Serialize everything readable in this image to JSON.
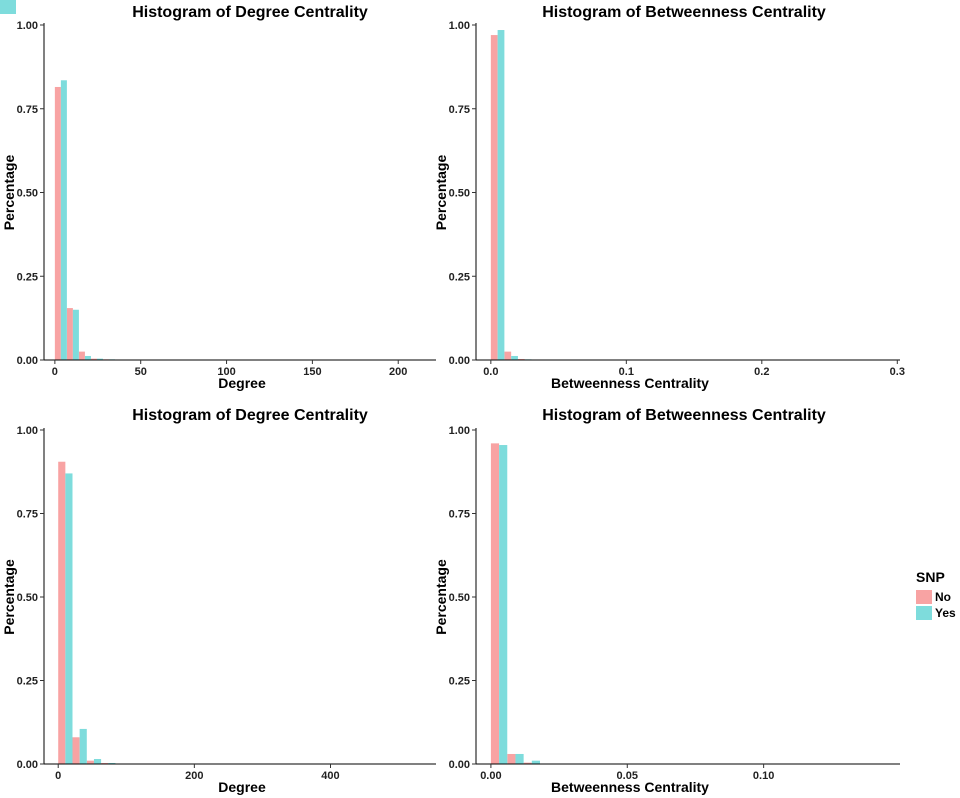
{
  "chart_data": [
    {
      "type": "bar",
      "title": "Histogram of Degree Centrality",
      "xlabel": "Degree",
      "ylabel": "Percentage",
      "xlim": [
        -4,
        222
      ],
      "ylim": [
        0,
        1
      ],
      "bin_width": 7,
      "x_ticks": [
        0,
        50,
        100,
        150,
        200
      ],
      "x_tick_labels": [
        "0",
        "50",
        "100",
        "150",
        "200"
      ],
      "y_ticks": [
        0,
        0.25,
        0.5,
        0.75,
        1
      ],
      "y_tick_labels": [
        "0.00",
        "0.25",
        "0.50",
        "0.75",
        "1.00"
      ],
      "grid": false,
      "bins": [
        0,
        7,
        14,
        21,
        28,
        35
      ],
      "series": [
        {
          "name": "No",
          "color": "#F8A3A3",
          "values": [
            0.815,
            0.155,
            0.025,
            0.004,
            0.002,
            0.001
          ]
        },
        {
          "name": "Yes",
          "color": "#7EDCDC",
          "values": [
            0.835,
            0.15,
            0.012,
            0.004,
            0.002,
            0.001
          ]
        }
      ]
    },
    {
      "type": "bar",
      "title": "Histogram of Betweenness Centrality",
      "xlabel": "Betweenness Centrality",
      "ylabel": "Percentage",
      "xlim": [
        -0.008,
        0.302
      ],
      "ylim": [
        0,
        1
      ],
      "bin_width": 0.01,
      "x_ticks": [
        0,
        0.1,
        0.2,
        0.3
      ],
      "x_tick_labels": [
        "0.0",
        "0.1",
        "0.2",
        "0.3"
      ],
      "y_ticks": [
        0,
        0.25,
        0.5,
        0.75,
        1
      ],
      "y_tick_labels": [
        "0.00",
        "0.25",
        "0.50",
        "0.75",
        "1.00"
      ],
      "grid": false,
      "bins": [
        0,
        0.01,
        0.02
      ],
      "series": [
        {
          "name": "No",
          "color": "#F8A3A3",
          "values": [
            0.97,
            0.025,
            0.003
          ]
        },
        {
          "name": "Yes",
          "color": "#7EDCDC",
          "values": [
            0.985,
            0.012,
            0.002
          ]
        }
      ],
      "legend": {
        "title": "SNP",
        "placement": "right",
        "entries": [
          "No",
          "Yes"
        ]
      }
    },
    {
      "type": "bar",
      "title": "Histogram of Degree Centrality",
      "xlabel": "Degree",
      "ylabel": "Percentage",
      "xlim": [
        -15,
        555
      ],
      "ylim": [
        0,
        1
      ],
      "bin_width": 21,
      "x_ticks": [
        0,
        200,
        400
      ],
      "x_tick_labels": [
        "0",
        "200",
        "400"
      ],
      "y_ticks": [
        0,
        0.25,
        0.5,
        0.75,
        1
      ],
      "y_tick_labels": [
        "0.00",
        "0.25",
        "0.50",
        "0.75",
        "1.00"
      ],
      "grid": false,
      "bins": [
        0,
        21,
        42,
        63
      ],
      "series": [
        {
          "name": "No",
          "color": "#F8A3A3",
          "values": [
            0.905,
            0.08,
            0.01,
            0.003
          ]
        },
        {
          "name": "Yes",
          "color": "#7EDCDC",
          "values": [
            0.87,
            0.105,
            0.015,
            0.003
          ]
        }
      ]
    },
    {
      "type": "bar",
      "title": "Histogram of Betweenness Centrality",
      "xlabel": "Betweenness Centrality",
      "ylabel": "Percentage",
      "xlim": [
        -0.004,
        0.15
      ],
      "ylim": [
        0,
        1
      ],
      "bin_width": 0.006,
      "x_ticks": [
        0,
        0.05,
        0.1
      ],
      "x_tick_labels": [
        "0.00",
        "0.05",
        "0.10"
      ],
      "y_ticks": [
        0,
        0.25,
        0.5,
        0.75,
        1
      ],
      "y_tick_labels": [
        "0.00",
        "0.25",
        "0.50",
        "0.75",
        "1.00"
      ],
      "grid": false,
      "bins": [
        0,
        0.006,
        0.012
      ],
      "series": [
        {
          "name": "No",
          "color": "#F8A3A3",
          "values": [
            0.96,
            0.03,
            0.004
          ]
        },
        {
          "name": "Yes",
          "color": "#7EDCDC",
          "values": [
            0.955,
            0.03,
            0.01
          ]
        }
      ],
      "legend": {
        "title": "SNP",
        "placement": "right",
        "entries": [
          "No",
          "Yes"
        ]
      }
    }
  ]
}
